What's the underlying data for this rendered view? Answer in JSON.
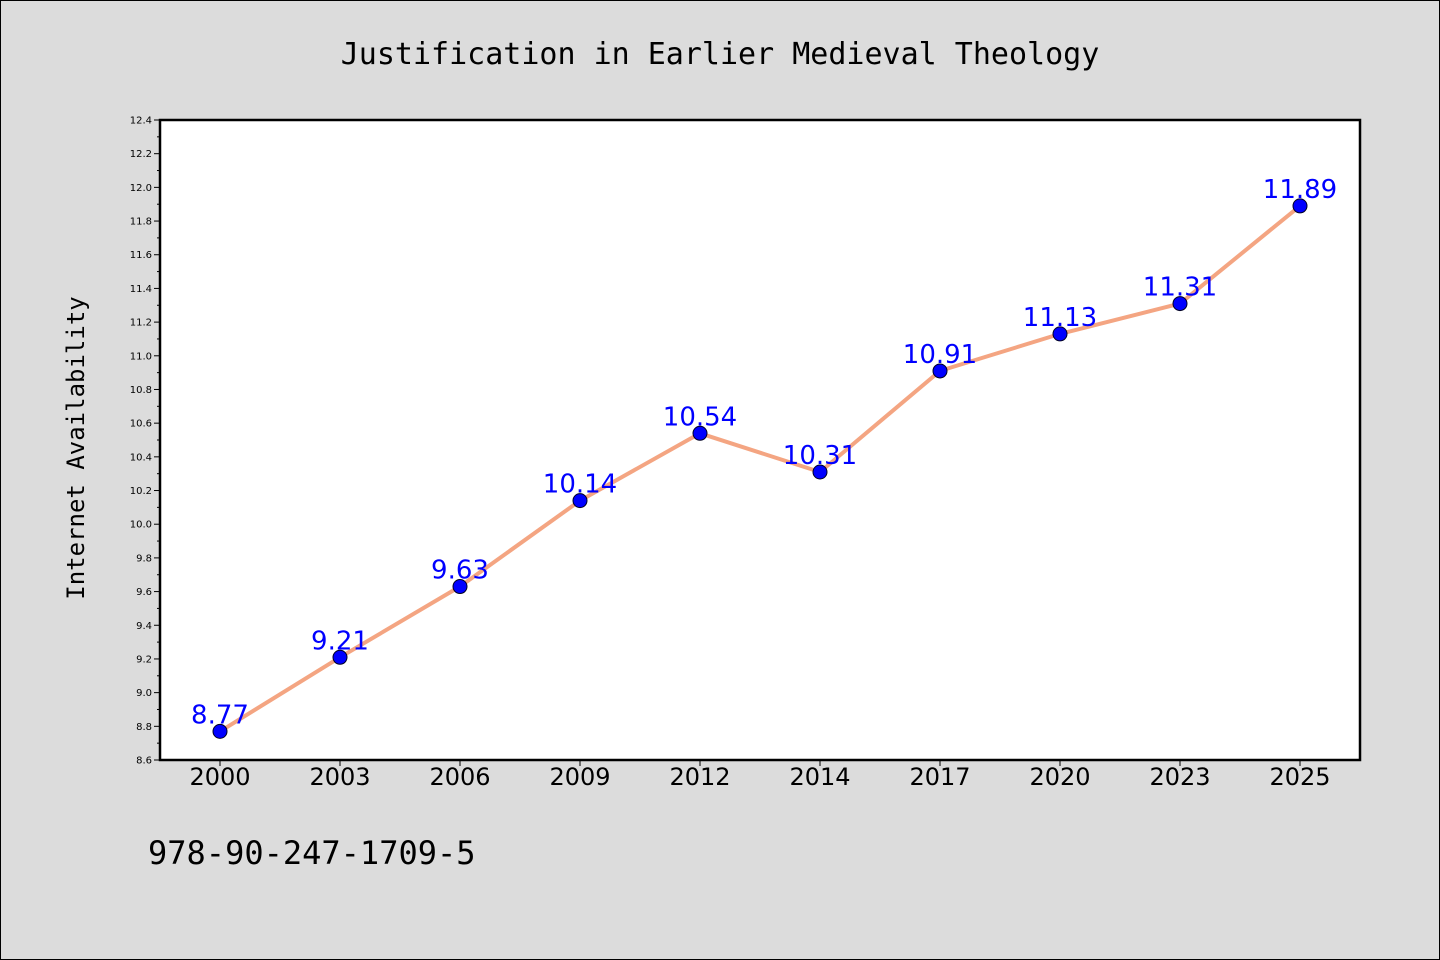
{
  "chart_data": {
    "type": "line",
    "title": "Justification in Earlier Medieval Theology",
    "xlabel": "",
    "ylabel": "Internet Availability",
    "categories": [
      "2000",
      "2003",
      "2006",
      "2009",
      "2012",
      "2014",
      "2017",
      "2020",
      "2023",
      "2025"
    ],
    "series": [
      {
        "values": [
          8.77,
          9.21,
          9.63,
          10.14,
          10.54,
          10.31,
          10.91,
          11.13,
          11.31,
          11.89
        ],
        "line_color": "#f4a582",
        "marker_color": "#0000ff"
      }
    ],
    "data_labels": [
      "8.77",
      "9.21",
      "9.63",
      "10.14",
      "10.54",
      "10.31",
      "10.91",
      "11.13",
      "11.31",
      "11.89"
    ],
    "ylim": [
      8.6,
      12.4
    ],
    "y_ticks": [
      "8.6",
      "8.8",
      "9.0",
      "9.2",
      "9.4",
      "9.6",
      "9.8",
      "10.0",
      "10.2",
      "10.4",
      "10.6",
      "10.8",
      "11.0",
      "11.2",
      "11.4",
      "11.6",
      "11.8",
      "12.0",
      "12.2",
      "12.4"
    ],
    "grid": false,
    "legend": "none"
  },
  "footer_text": "978-90-247-1709-5",
  "colors": {
    "background": "#dcdcdc",
    "plot_background": "#ffffff",
    "line": "#f4a582",
    "marker": "#0000ff",
    "data_label": "#0000ff"
  }
}
